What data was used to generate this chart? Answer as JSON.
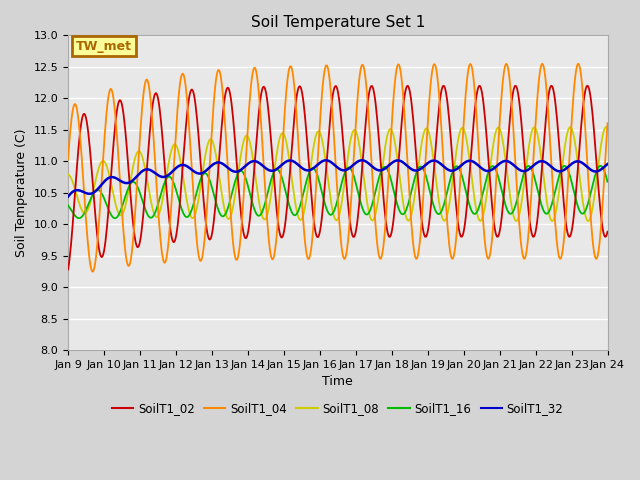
{
  "title": "Soil Temperature Set 1",
  "xlabel": "Time",
  "ylabel": "Soil Temperature (C)",
  "ylim": [
    8.0,
    13.0
  ],
  "yticks": [
    8.0,
    8.5,
    9.0,
    9.5,
    10.0,
    10.5,
    11.0,
    11.5,
    12.0,
    12.5,
    13.0
  ],
  "xtick_labels": [
    "Jan 9",
    "Jan 10",
    "Jan 11",
    "Jan 12",
    "Jan 13",
    "Jan 14",
    "Jan 15",
    "Jan 16",
    "Jan 17",
    "Jan 18",
    "Jan 19",
    "Jan 20",
    "Jan 21",
    "Jan 22",
    "Jan 23",
    "Jan 24"
  ],
  "series_colors": {
    "SoilT1_02": "#cc0000",
    "SoilT1_04": "#ff8800",
    "SoilT1_08": "#cccc00",
    "SoilT1_16": "#00bb00",
    "SoilT1_32": "#0000cc"
  },
  "annotation_text": "TW_met",
  "annotation_box_color": "#ffff99",
  "annotation_border_color": "#aa6600",
  "fig_bg_color": "#d4d4d4",
  "plot_bg_color": "#e8e8e8",
  "grid_color": "#ffffff",
  "title_fontsize": 11,
  "label_fontsize": 9,
  "tick_fontsize": 8
}
